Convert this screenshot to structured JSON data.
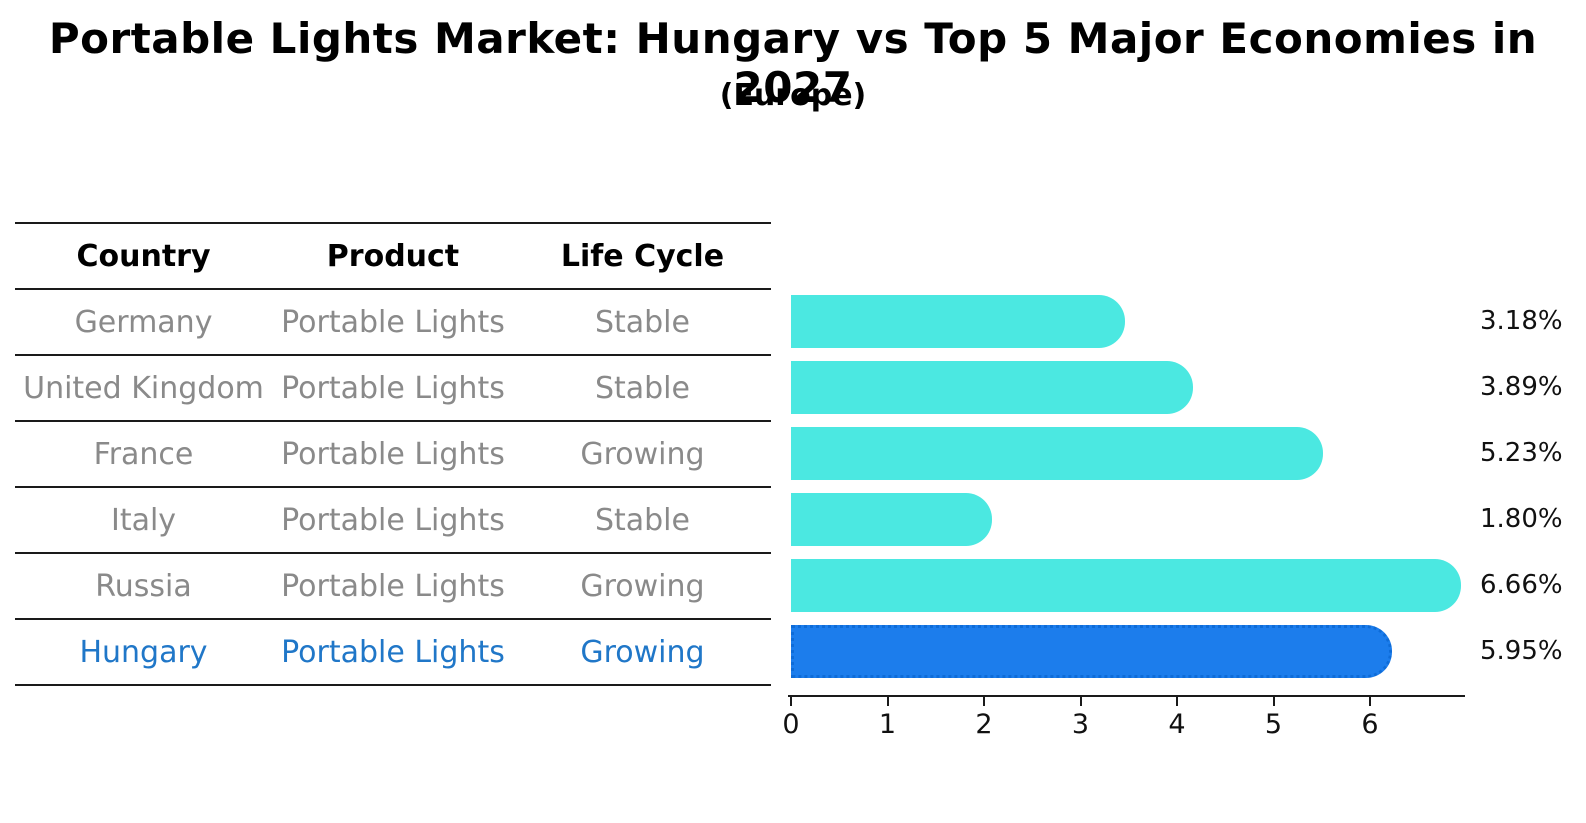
{
  "title": "Portable Lights Market: Hungary vs Top 5 Major Economies in 2027",
  "subtitle": "(Europe)",
  "table": {
    "headers": [
      "Country",
      "Product",
      "Life Cycle"
    ],
    "rows": [
      {
        "country": "Germany",
        "product": "Portable Lights",
        "life_cycle": "Stable",
        "highlight": false
      },
      {
        "country": "United Kingdom",
        "product": "Portable Lights",
        "life_cycle": "Stable",
        "highlight": false
      },
      {
        "country": "France",
        "product": "Portable Lights",
        "life_cycle": "Growing",
        "highlight": false
      },
      {
        "country": "Italy",
        "product": "Portable Lights",
        "life_cycle": "Stable",
        "highlight": false
      },
      {
        "country": "Russia",
        "product": "Portable Lights",
        "life_cycle": "Growing",
        "highlight": false
      },
      {
        "country": "Hungary",
        "product": "Portable Lights",
        "life_cycle": "Growing",
        "highlight": true
      }
    ]
  },
  "chart_data": {
    "type": "bar",
    "orientation": "horizontal",
    "title": "Portable Lights Market: Hungary vs Top 5 Major Economies in 2027",
    "subtitle": "(Europe)",
    "categories": [
      "Germany",
      "United Kingdom",
      "France",
      "Italy",
      "Russia",
      "Hungary"
    ],
    "values": [
      3.18,
      3.89,
      5.23,
      1.8,
      6.66,
      5.95
    ],
    "labels": [
      "3.18%",
      "3.89%",
      "5.23%",
      "1.80%",
      "6.66%",
      "5.95%"
    ],
    "unit": "%",
    "x_ticks": [
      0,
      1,
      2,
      3,
      4,
      5,
      6
    ],
    "xlim": [
      0,
      7
    ],
    "grid": false,
    "legend": "none",
    "highlight_index": 5
  },
  "colors": {
    "bar": "#4be8e1",
    "highlight_bar": "#1c7dec",
    "highlight_bar_edge": "#0e6cd8",
    "highlight_text": "#2077c8",
    "table_text": "#8a8a8a",
    "heading_text": "#000000",
    "axis_line": "#1a1a1a"
  }
}
